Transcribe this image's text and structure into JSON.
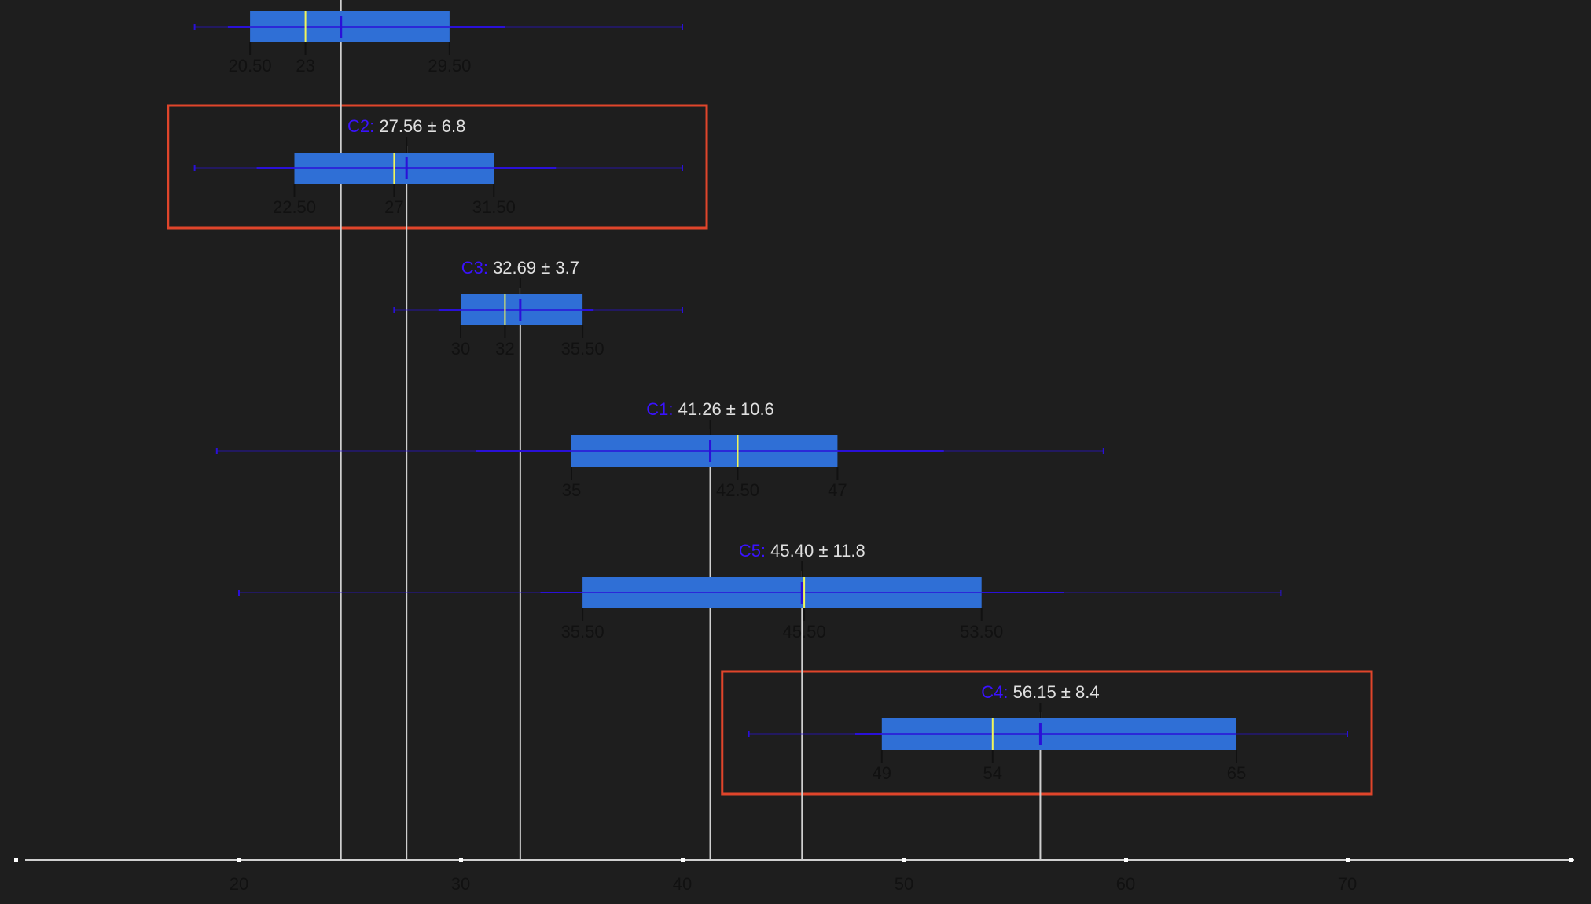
{
  "chart_data": {
    "type": "box",
    "xlim": [
      10,
      80
    ],
    "x_ticks": [
      20,
      30,
      40,
      50,
      60,
      70
    ],
    "grid": false,
    "colors": {
      "background": "#1e1e1e",
      "box_fill": "#2f6fd6",
      "whisker": "#2a10d8",
      "median": "#f1f55a",
      "mean_marker": "#2a10d8",
      "mean_line": "#cfcfcf",
      "label_name": "#3a12ff",
      "label_text": "#e0e0e0",
      "tick_text": "#111111",
      "axis": "#d0d0d0",
      "highlight": "#e0452b"
    },
    "series": [
      {
        "name": "",
        "summary_text": "",
        "mean": 24.6,
        "q1": 20.5,
        "median": 23,
        "q3": 29.5,
        "min": 18,
        "max": 40,
        "inner_min": 19.5,
        "inner_max": 32,
        "highlighted": false,
        "tick_labels": [
          "20.50",
          "23",
          "29.50"
        ]
      },
      {
        "name": "C2:",
        "summary_text": "27.56 ± 6.8",
        "mean": 27.56,
        "q1": 22.5,
        "median": 27,
        "q3": 31.5,
        "min": 18,
        "max": 40,
        "inner_min": 20.8,
        "inner_max": 34.3,
        "highlighted": true,
        "tick_labels": [
          "22.50",
          "27",
          "31.50"
        ]
      },
      {
        "name": "C3:",
        "summary_text": "32.69 ± 3.7",
        "mean": 32.69,
        "q1": 30,
        "median": 32,
        "q3": 35.5,
        "min": 27,
        "max": 40,
        "inner_min": 29,
        "inner_max": 36,
        "highlighted": false,
        "tick_labels": [
          "30",
          "32",
          "35.50"
        ]
      },
      {
        "name": "C1:",
        "summary_text": "41.26 ± 10.6",
        "mean": 41.26,
        "q1": 35,
        "median": 42.5,
        "q3": 47,
        "min": 19,
        "max": 59,
        "inner_min": 30.7,
        "inner_max": 51.8,
        "highlighted": false,
        "tick_labels": [
          "35",
          "42.50",
          "47"
        ]
      },
      {
        "name": "C5:",
        "summary_text": "45.40 ± 11.8",
        "mean": 45.4,
        "q1": 35.5,
        "median": 45.5,
        "q3": 53.5,
        "min": 20,
        "max": 67,
        "inner_min": 33.6,
        "inner_max": 57.2,
        "highlighted": false,
        "tick_labels": [
          "35.50",
          "45.50",
          "53.50"
        ]
      },
      {
        "name": "C4:",
        "summary_text": "56.15 ± 8.4",
        "mean": 56.15,
        "q1": 49,
        "median": 54,
        "q3": 65,
        "min": 43,
        "max": 70,
        "inner_min": 47.8,
        "inner_max": 64.5,
        "highlighted": true,
        "tick_labels": [
          "49",
          "54",
          "65"
        ]
      }
    ]
  }
}
